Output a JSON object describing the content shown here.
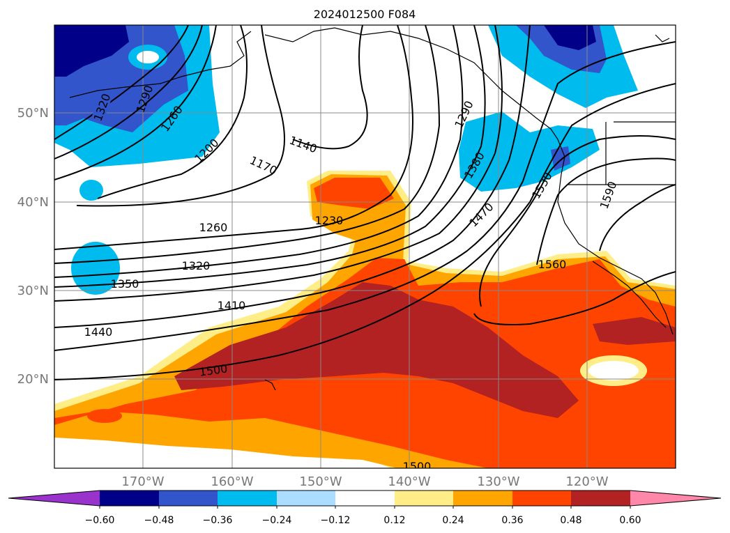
{
  "title": "2024012500 F084",
  "map": {
    "lat_ticks": [
      "50°N",
      "40°N",
      "30°N",
      "20°N"
    ],
    "lon_ticks": [
      "170°W",
      "160°W",
      "150°W",
      "140°W",
      "130°W",
      "120°W"
    ],
    "contour_labels": [
      "1320",
      "1290",
      "1260",
      "1200",
      "1170",
      "1140",
      "1230",
      "1260",
      "1320",
      "1350",
      "1410",
      "1440",
      "1500",
      "1500",
      "1290",
      "1380",
      "1470",
      "1530",
      "1560",
      "1590"
    ]
  },
  "colorbar": {
    "ticks": [
      "−0.60",
      "−0.48",
      "−0.36",
      "−0.24",
      "−0.12",
      "0.12",
      "0.24",
      "0.36",
      "0.48",
      "0.60"
    ],
    "colors": [
      "#9933cc",
      "#000088",
      "#3355cc",
      "#00bbee",
      "#aaddff",
      "#ffffff",
      "#ffee88",
      "#ffa500",
      "#ff4400",
      "#b22222",
      "#ff88aa"
    ]
  },
  "colors": {
    "gridline": "#888888",
    "tick_label": "#777777",
    "contour": "#000000"
  }
}
